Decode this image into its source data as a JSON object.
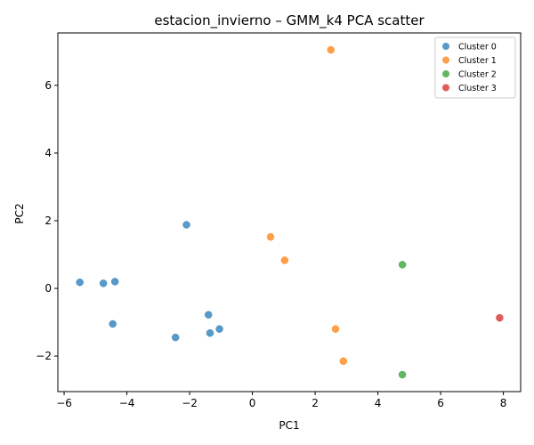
{
  "chart_data": {
    "type": "scatter",
    "title": "estacion_invierno – GMM_k4 PCA scatter",
    "xlabel": "PC1",
    "ylabel": "PC2",
    "xlim": [
      -6.2,
      8.55
    ],
    "ylim": [
      -3.05,
      7.55
    ],
    "xticks": [
      -6,
      -4,
      -2,
      0,
      2,
      4,
      6,
      8
    ],
    "yticks": [
      -2,
      0,
      2,
      4,
      6
    ],
    "grid": false,
    "legend_position": "top-right",
    "series": [
      {
        "name": "Cluster 0",
        "color": "#1f77b4",
        "points": [
          [
            -5.5,
            0.18
          ],
          [
            -4.75,
            0.15
          ],
          [
            -4.38,
            0.2
          ],
          [
            -2.1,
            1.88
          ],
          [
            -4.45,
            -1.05
          ],
          [
            -1.4,
            -0.78
          ],
          [
            -2.45,
            -1.45
          ],
          [
            -1.35,
            -1.32
          ],
          [
            -1.05,
            -1.2
          ]
        ]
      },
      {
        "name": "Cluster 1",
        "color": "#ff7f0e",
        "points": [
          [
            2.5,
            7.05
          ],
          [
            0.58,
            1.52
          ],
          [
            1.03,
            0.83
          ],
          [
            2.65,
            -1.2
          ],
          [
            2.9,
            -2.15
          ]
        ]
      },
      {
        "name": "Cluster 2",
        "color": "#2ca02c",
        "points": [
          [
            4.78,
            0.7
          ],
          [
            4.78,
            -2.55
          ]
        ]
      },
      {
        "name": "Cluster 3",
        "color": "#d62728",
        "points": [
          [
            7.88,
            -0.87
          ]
        ]
      }
    ]
  }
}
